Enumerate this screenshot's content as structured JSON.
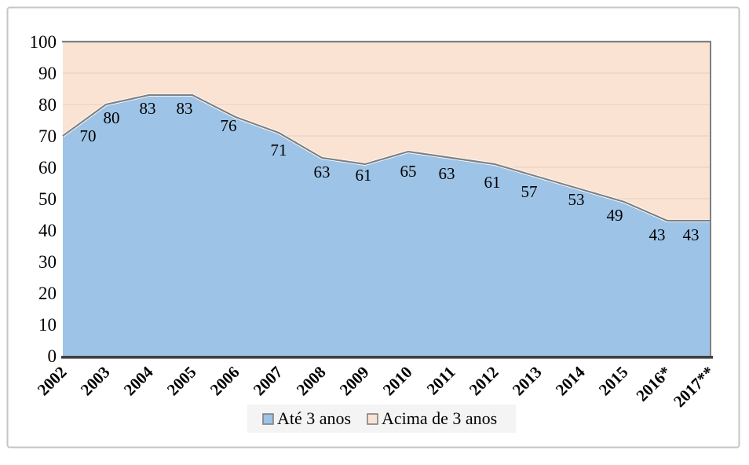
{
  "chart_data": {
    "type": "area",
    "stacked": true,
    "title": "",
    "xlabel": "",
    "ylabel": "",
    "categories": [
      "2002",
      "2003",
      "2004",
      "2005",
      "2006",
      "2007",
      "2008",
      "2009",
      "2010",
      "2011",
      "2012",
      "2013",
      "2014",
      "2015",
      "2016*",
      "2017**"
    ],
    "series": [
      {
        "name": "Até 3 anos",
        "color": "#9DC3E6",
        "border_color": "#808080",
        "values": [
          70,
          80,
          83,
          83,
          76,
          71,
          63,
          61,
          65,
          63,
          61,
          57,
          53,
          49,
          43,
          43
        ]
      },
      {
        "name": "Acima de 3 anos",
        "color": "#FAE3D3",
        "border_color": "#808080",
        "values": [
          30,
          20,
          17,
          17,
          24,
          29,
          37,
          39,
          35,
          37,
          39,
          43,
          47,
          51,
          57,
          57
        ]
      }
    ],
    "data_labels_series": "Até 3 anos",
    "data_labels": [
      70,
      80,
      83,
      83,
      76,
      71,
      63,
      61,
      65,
      63,
      61,
      57,
      53,
      49,
      43,
      43
    ],
    "ylim": [
      0,
      100
    ],
    "yticks": [
      0,
      10,
      20,
      30,
      40,
      50,
      60,
      70,
      80,
      90,
      100
    ],
    "grid": true,
    "legend_position": "bottom"
  },
  "legend": {
    "items": [
      {
        "label": "Até 3 anos",
        "color": "#9DC3E6"
      },
      {
        "label": "Acima de 3 anos",
        "color": "#FAE3D3"
      }
    ]
  },
  "colors": {
    "axis_line": "#404040",
    "data_line": "#808080",
    "plot_border": "#808080",
    "frame_border": "#C6C6C6",
    "gridline": "#F0D6C2",
    "legend_bg": "#F4F4F4",
    "halo": "#FFFFFF",
    "background": "#FFFFFF"
  }
}
